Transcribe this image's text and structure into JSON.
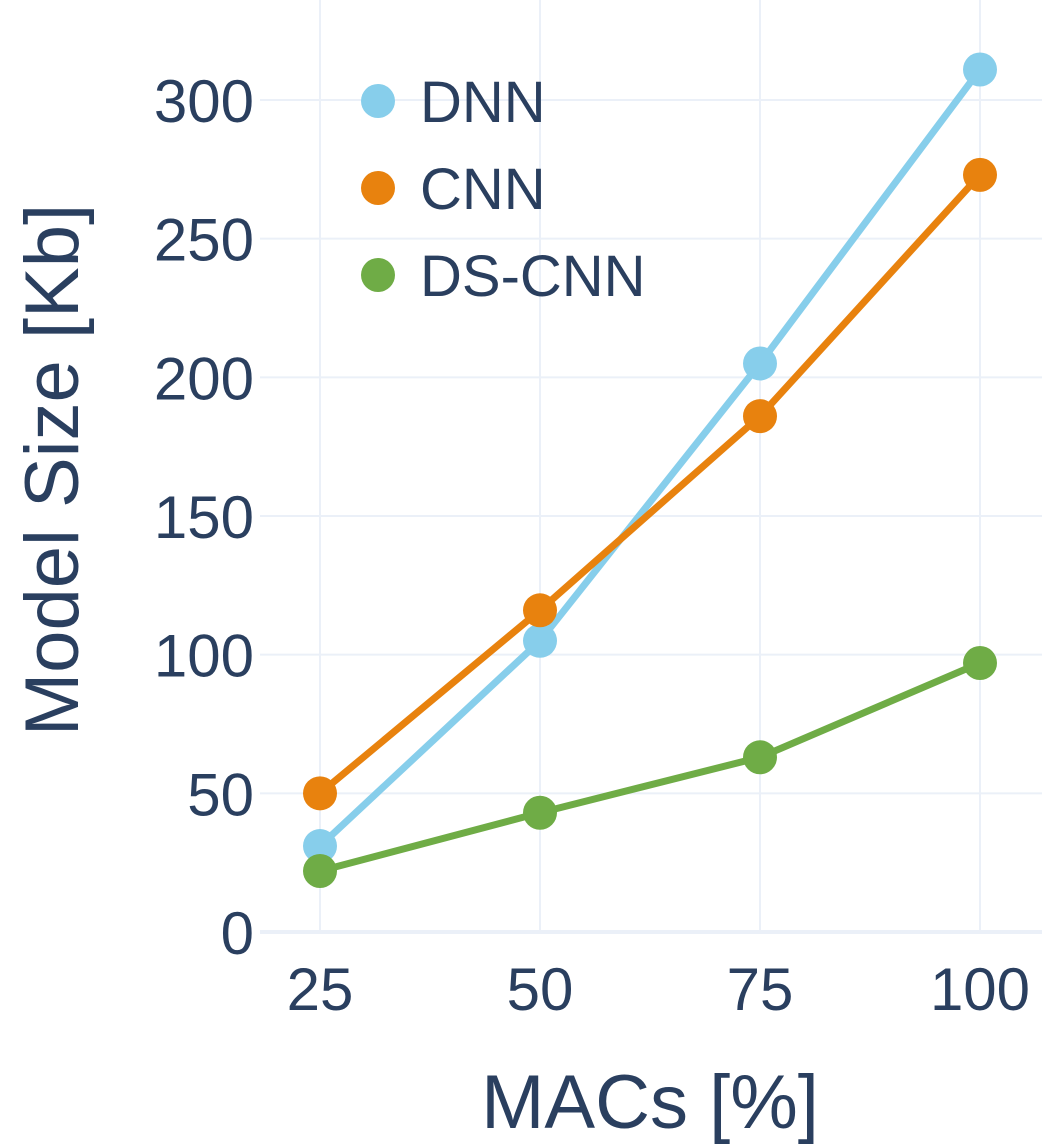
{
  "chart_data": {
    "type": "line",
    "title": "",
    "xlabel": "MACs [%]",
    "ylabel": "Model Size [Kb]",
    "x": [
      25,
      50,
      75,
      100
    ],
    "x_tick_labels": [
      "25",
      "50",
      "75",
      "100"
    ],
    "y_ticks": [
      0,
      50,
      100,
      150,
      200,
      250,
      300
    ],
    "y_tick_labels": [
      "0",
      "50",
      "100",
      "150",
      "200",
      "250",
      "300"
    ],
    "xlim": [
      15,
      107
    ],
    "ylim": [
      0,
      335
    ],
    "grid": true,
    "legend_position": "top-left",
    "series": [
      {
        "name": "DNN",
        "color": "#87ceeb",
        "values": [
          31,
          105,
          205,
          311
        ]
      },
      {
        "name": "CNN",
        "color": "#e8820e",
        "values": [
          50,
          116,
          186,
          273
        ]
      },
      {
        "name": "DS-CNN",
        "color": "#6fac46",
        "values": [
          22,
          43,
          63,
          97
        ]
      }
    ]
  }
}
